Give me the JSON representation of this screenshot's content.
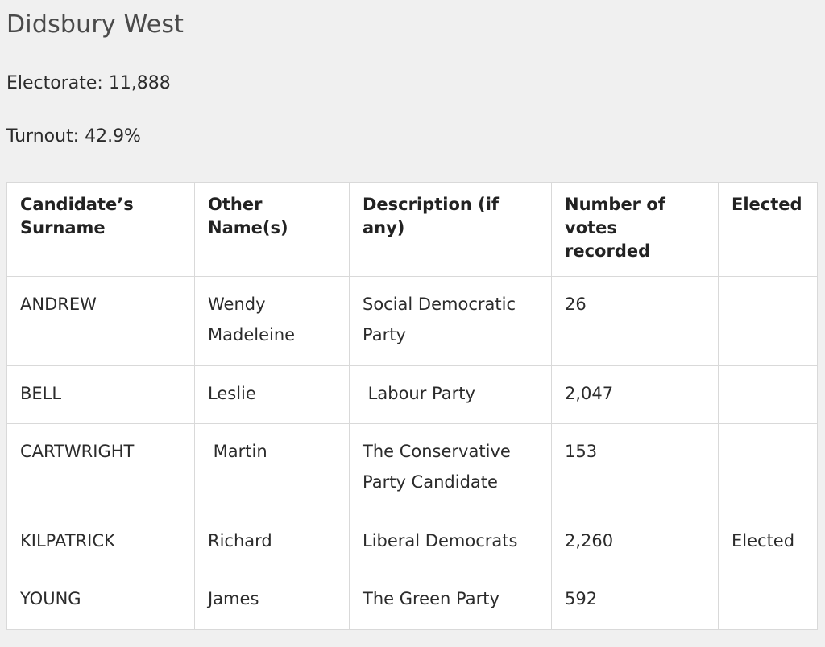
{
  "ward": {
    "title": "Didsbury West",
    "electorate": "Electorate: 11,888",
    "turnout": "Turnout: 42.9%"
  },
  "table": {
    "headers": [
      "Candidate’s Surname",
      "Other Name(s)",
      "Description (if any)",
      "Number of votes recorded",
      "Elected"
    ],
    "rows": [
      {
        "surname": "ANDREW",
        "other_names": "Wendy Madeleine",
        "description": "Social Democratic Party",
        "votes": "26",
        "elected": ""
      },
      {
        "surname": "BELL",
        "other_names": "Leslie",
        "description": " Labour Party",
        "votes": "2,047",
        "elected": ""
      },
      {
        "surname": "CARTWRIGHT",
        "other_names": " Martin",
        "description": "The Conservative Party Candidate",
        "votes": "153",
        "elected": ""
      },
      {
        "surname": "KILPATRICK",
        "other_names": "Richard",
        "description": "Liberal Democrats",
        "votes": "2,260",
        "elected": "Elected"
      },
      {
        "surname": "YOUNG",
        "other_names": "James",
        "description": "The Green Party",
        "votes": "592",
        "elected": ""
      }
    ]
  }
}
